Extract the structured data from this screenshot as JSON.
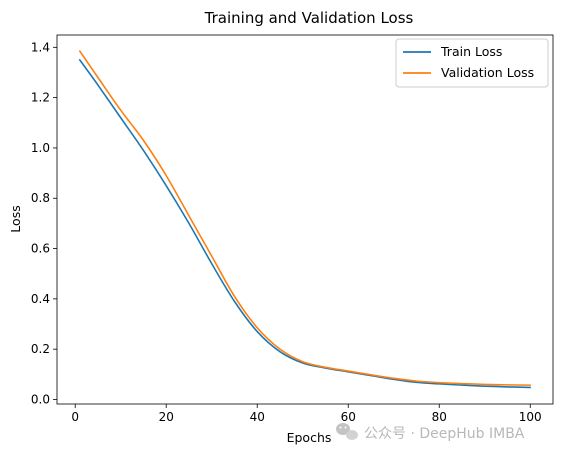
{
  "chart_data": {
    "type": "line",
    "title": "Training and Validation Loss",
    "xlabel": "Epochs",
    "ylabel": "Loss",
    "xlim": [
      -4,
      105
    ],
    "ylim": [
      -0.018,
      1.449
    ],
    "xticks": [
      0,
      20,
      40,
      60,
      80,
      100
    ],
    "yticks": [
      0.0,
      0.2,
      0.4,
      0.6,
      0.8,
      1.0,
      1.2,
      1.4
    ],
    "ytick_labels": [
      "0.0",
      "0.2",
      "0.4",
      "0.6",
      "0.8",
      "1.0",
      "1.2",
      "1.4"
    ],
    "grid": false,
    "legend_position": "top-right",
    "x": [
      1,
      5,
      10,
      15,
      20,
      25,
      30,
      35,
      40,
      45,
      50,
      55,
      60,
      65,
      70,
      75,
      80,
      85,
      90,
      95,
      100
    ],
    "series": [
      {
        "name": "Train Loss",
        "color": "#1f77b4",
        "values": [
          1.35,
          1.25,
          1.12,
          0.99,
          0.85,
          0.7,
          0.54,
          0.39,
          0.27,
          0.19,
          0.145,
          0.125,
          0.11,
          0.095,
          0.08,
          0.068,
          0.062,
          0.057,
          0.053,
          0.05,
          0.048
        ]
      },
      {
        "name": "Validation Loss",
        "color": "#ff7f0e",
        "values": [
          1.385,
          1.28,
          1.15,
          1.03,
          0.89,
          0.73,
          0.57,
          0.41,
          0.285,
          0.2,
          0.15,
          0.128,
          0.113,
          0.098,
          0.084,
          0.073,
          0.067,
          0.063,
          0.06,
          0.058,
          0.057
        ]
      }
    ]
  },
  "watermark": {
    "text": "公众号 · DeepHub IMBA",
    "icon": "wechat-icon"
  }
}
